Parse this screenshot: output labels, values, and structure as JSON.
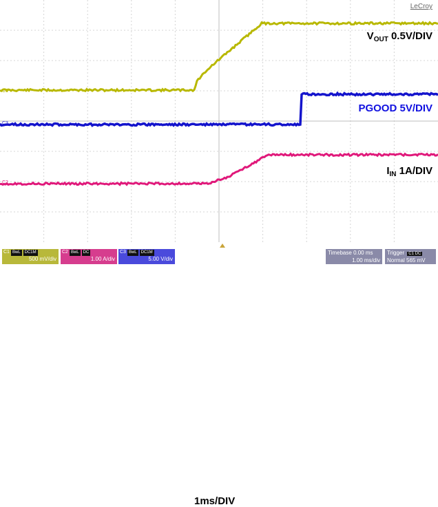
{
  "brand": "LeCroy",
  "labels": {
    "vout_main": "V",
    "vout_sub": "OUT",
    "vout_scale": " 0.5V/DIV",
    "pgood": "PGOOD 5V/DIV",
    "iin_main": "I",
    "iin_sub": "IN",
    "iin_scale": " 1A/DIV",
    "timebase_div": "1ms/DIV"
  },
  "channels": [
    {
      "name": "C1",
      "tag1": "BwL",
      "tag2": "DC1M",
      "scale": "500 mV/div",
      "color": "#b8b83a",
      "trace_color": "#b8b800"
    },
    {
      "name": "C2",
      "tag1": "BwL",
      "tag2": "DC",
      "scale": "1.00 A/div",
      "color": "#d63d8e",
      "trace_color": "#e0187a"
    },
    {
      "name": "C3",
      "tag1": "BwL",
      "tag2": "DC1M",
      "scale": "5.00 V/div",
      "color": "#4a4adc",
      "trace_color": "#1414cc"
    }
  ],
  "timebase": {
    "label": "Timebase",
    "delay": "0.00 ms",
    "value": "1.00 ms/div"
  },
  "trigger": {
    "label": "Trigger",
    "chip": "C1 DC",
    "mode": "Normal",
    "level": "565 mV"
  },
  "grid": {
    "divisions_x": 10,
    "divisions_y": 8
  }
}
